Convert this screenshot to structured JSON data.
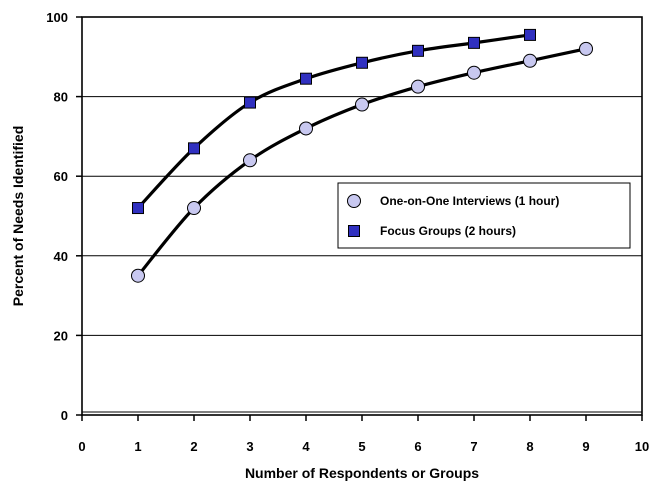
{
  "chart_data": {
    "type": "line",
    "xlabel": "Number of Respondents or Groups",
    "ylabel": "Percent of Needs Identified",
    "xlim": [
      0,
      10
    ],
    "ylim": [
      0,
      100
    ],
    "x_ticks": [
      0,
      1,
      2,
      3,
      4,
      5,
      6,
      7,
      8,
      9,
      10
    ],
    "y_ticks": [
      0,
      20,
      40,
      60,
      80,
      100
    ],
    "grid": "horizontal",
    "legend_position": "right",
    "series": [
      {
        "name": "One-on-One Interviews (1 hour)",
        "marker": "circle",
        "fill_color": "#c8c8f0",
        "line_color": "#000000",
        "x": [
          1,
          2,
          3,
          4,
          5,
          6,
          7,
          8,
          9
        ],
        "values": [
          35,
          52,
          64,
          72,
          78,
          82.5,
          86,
          89,
          92
        ]
      },
      {
        "name": "Focus Groups (2 hours)",
        "marker": "square",
        "fill_color": "#3030c0",
        "line_color": "#000000",
        "x": [
          1,
          2,
          3,
          4,
          5,
          6,
          7,
          8
        ],
        "values": [
          52,
          67,
          78.5,
          84.5,
          88.5,
          91.5,
          93.5,
          95.5
        ]
      }
    ]
  }
}
